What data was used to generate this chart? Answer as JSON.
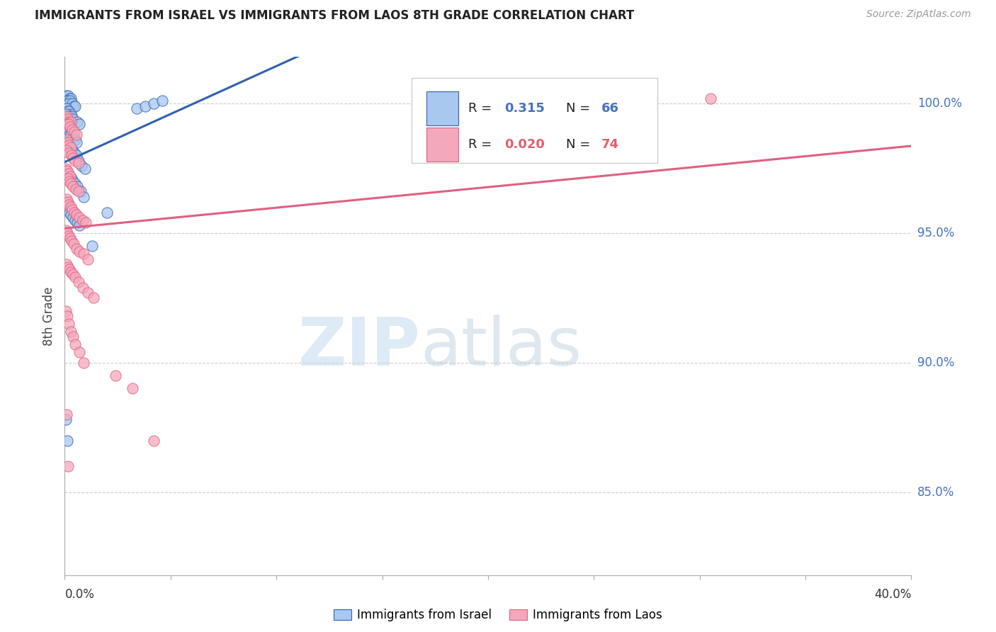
{
  "title": "IMMIGRANTS FROM ISRAEL VS IMMIGRANTS FROM LAOS 8TH GRADE CORRELATION CHART",
  "source": "Source: ZipAtlas.com",
  "ylabel": "8th Grade",
  "yaxis_labels": [
    "100.0%",
    "95.0%",
    "90.0%",
    "85.0%"
  ],
  "yaxis_values": [
    1.0,
    0.95,
    0.9,
    0.85
  ],
  "xmin": 0.0,
  "xmax": 0.4,
  "ymin": 0.818,
  "ymax": 1.018,
  "israel_R": "0.315",
  "israel_N": "66",
  "laos_R": "0.020",
  "laos_N": "74",
  "israel_color": "#a8c8f0",
  "laos_color": "#f4a8bc",
  "israel_line_color": "#3060b0",
  "laos_line_color": "#e06080",
  "background_color": "#ffffff",
  "israel_x": [
    0.0008,
    0.0015,
    0.0022,
    0.003,
    0.0012,
    0.0025,
    0.0018,
    0.0035,
    0.0042,
    0.005,
    0.0008,
    0.0015,
    0.002,
    0.0028,
    0.001,
    0.0018,
    0.0032,
    0.004,
    0.006,
    0.007,
    0.0005,
    0.0012,
    0.0018,
    0.0025,
    0.0015,
    0.0022,
    0.003,
    0.0038,
    0.0048,
    0.0055,
    0.0008,
    0.0015,
    0.002,
    0.0028,
    0.0035,
    0.0045,
    0.0055,
    0.0065,
    0.008,
    0.0095,
    0.0005,
    0.0012,
    0.0018,
    0.0025,
    0.0032,
    0.004,
    0.005,
    0.006,
    0.0075,
    0.009,
    0.0008,
    0.0015,
    0.0022,
    0.003,
    0.0038,
    0.0048,
    0.0058,
    0.0068,
    0.013,
    0.02,
    0.0005,
    0.0012,
    0.034,
    0.038,
    0.042,
    0.046
  ],
  "israel_y": [
    1.003,
    1.003,
    1.002,
    1.002,
    1.001,
    1.001,
    1.0,
    1.0,
    0.999,
    0.999,
    0.998,
    0.997,
    0.997,
    0.996,
    0.996,
    0.995,
    0.995,
    0.994,
    0.993,
    0.992,
    0.991,
    0.991,
    0.99,
    0.99,
    0.989,
    0.988,
    0.988,
    0.987,
    0.986,
    0.985,
    0.984,
    0.983,
    0.983,
    0.982,
    0.982,
    0.981,
    0.98,
    0.978,
    0.976,
    0.975,
    0.974,
    0.973,
    0.972,
    0.972,
    0.971,
    0.97,
    0.969,
    0.968,
    0.966,
    0.964,
    0.962,
    0.96,
    0.958,
    0.957,
    0.956,
    0.955,
    0.954,
    0.953,
    0.945,
    0.958,
    0.878,
    0.87,
    0.998,
    0.999,
    1.0,
    1.001
  ],
  "laos_x": [
    0.0008,
    0.0015,
    0.002,
    0.0028,
    0.001,
    0.0018,
    0.0025,
    0.0035,
    0.0045,
    0.0055,
    0.0008,
    0.0015,
    0.002,
    0.0028,
    0.001,
    0.0018,
    0.0032,
    0.004,
    0.005,
    0.0065,
    0.0005,
    0.0012,
    0.0018,
    0.0025,
    0.0015,
    0.0022,
    0.003,
    0.004,
    0.0052,
    0.0065,
    0.0008,
    0.0015,
    0.002,
    0.0028,
    0.0035,
    0.0045,
    0.0055,
    0.007,
    0.0085,
    0.01,
    0.0005,
    0.0012,
    0.0018,
    0.0025,
    0.0032,
    0.0042,
    0.0055,
    0.007,
    0.009,
    0.011,
    0.0008,
    0.0015,
    0.0022,
    0.003,
    0.004,
    0.005,
    0.0065,
    0.0085,
    0.011,
    0.0135,
    0.0005,
    0.0012,
    0.002,
    0.0028,
    0.0038,
    0.005,
    0.0068,
    0.009,
    0.024,
    0.032,
    0.0008,
    0.042,
    0.0015,
    0.305
  ],
  "laos_y": [
    0.995,
    0.994,
    0.993,
    0.993,
    0.992,
    0.992,
    0.991,
    0.99,
    0.989,
    0.988,
    0.986,
    0.985,
    0.984,
    0.983,
    0.982,
    0.981,
    0.98,
    0.979,
    0.978,
    0.977,
    0.975,
    0.974,
    0.973,
    0.972,
    0.971,
    0.97,
    0.969,
    0.968,
    0.967,
    0.966,
    0.963,
    0.962,
    0.961,
    0.96,
    0.959,
    0.958,
    0.957,
    0.956,
    0.955,
    0.954,
    0.951,
    0.95,
    0.949,
    0.948,
    0.947,
    0.946,
    0.944,
    0.943,
    0.942,
    0.94,
    0.938,
    0.937,
    0.936,
    0.935,
    0.934,
    0.933,
    0.931,
    0.929,
    0.927,
    0.925,
    0.92,
    0.918,
    0.915,
    0.912,
    0.91,
    0.907,
    0.904,
    0.9,
    0.895,
    0.89,
    0.88,
    0.87,
    0.86,
    1.002
  ]
}
